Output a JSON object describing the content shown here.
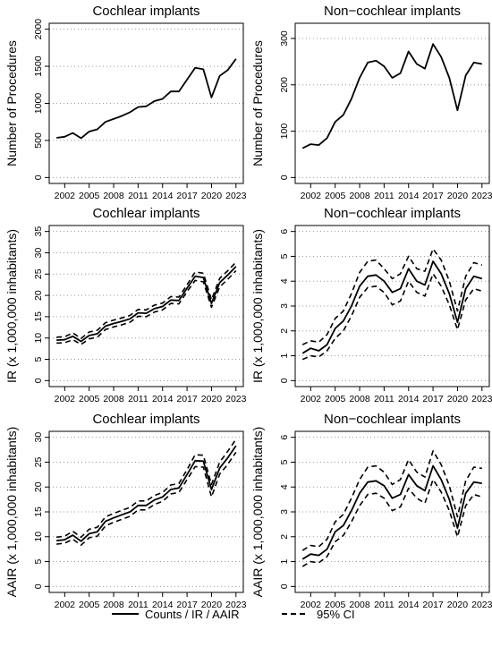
{
  "chart_data": [
    {
      "type": "line",
      "title": "Cochlear implants",
      "ylabel": "Number of Procedures",
      "x": [
        2001,
        2002,
        2003,
        2004,
        2005,
        2006,
        2007,
        2008,
        2009,
        2010,
        2011,
        2012,
        2013,
        2014,
        2015,
        2016,
        2017,
        2018,
        2019,
        2020,
        2021,
        2022,
        2023
      ],
      "ylim": [
        0,
        2000
      ],
      "yticks": [
        "0",
        "500",
        "1000",
        "1500",
        "2000"
      ],
      "ytick_values": [
        0,
        500,
        1000,
        1500,
        2000
      ],
      "grid": true,
      "series": [
        {
          "values": [
            535,
            550,
            600,
            530,
            620,
            650,
            750,
            790,
            830,
            880,
            950,
            960,
            1030,
            1060,
            1160,
            1160,
            1320,
            1480,
            1460,
            1080,
            1370,
            1450,
            1600
          ]
        }
      ]
    },
    {
      "type": "line",
      "title": "Non−cochlear implants",
      "ylabel": "Number of Procedures",
      "x": [
        2001,
        2002,
        2003,
        2004,
        2005,
        2006,
        2007,
        2008,
        2009,
        2010,
        2011,
        2012,
        2013,
        2014,
        2015,
        2016,
        2017,
        2018,
        2019,
        2020,
        2021,
        2022,
        2023
      ],
      "ylim": [
        0,
        320
      ],
      "yticks": [
        "0",
        "100",
        "200",
        "300"
      ],
      "ytick_values": [
        0,
        100,
        200,
        300
      ],
      "grid": true,
      "series": [
        {
          "values": [
            63,
            72,
            70,
            85,
            120,
            135,
            170,
            215,
            248,
            252,
            240,
            215,
            225,
            272,
            245,
            235,
            288,
            260,
            215,
            145,
            220,
            248,
            245
          ]
        }
      ]
    },
    {
      "type": "line",
      "title": "Cochlear implants",
      "ylabel": "IR (x 1,000,000 inhabitants)",
      "x": [
        2001,
        2002,
        2003,
        2004,
        2005,
        2006,
        2007,
        2008,
        2009,
        2010,
        2011,
        2012,
        2013,
        2014,
        2015,
        2016,
        2017,
        2018,
        2019,
        2020,
        2021,
        2022,
        2023
      ],
      "ylim": [
        0,
        35
      ],
      "yticks": [
        "0",
        "5",
        "10",
        "15",
        "20",
        "25",
        "30",
        "35"
      ],
      "ytick_values": [
        0,
        5,
        10,
        15,
        20,
        25,
        30,
        35
      ],
      "grid": true,
      "series": [
        {
          "values": [
            9.5,
            9.6,
            10.4,
            9.2,
            10.6,
            11.0,
            12.8,
            13.4,
            13.9,
            14.5,
            15.9,
            15.8,
            16.9,
            17.4,
            18.9,
            18.8,
            21.7,
            24.5,
            24.2,
            18.1,
            23.0,
            24.8,
            26.8
          ]
        },
        {
          "values": [
            10.2,
            10.3,
            11.2,
            9.9,
            11.4,
            11.8,
            13.6,
            14.2,
            14.7,
            15.3,
            16.7,
            16.6,
            17.7,
            18.2,
            19.7,
            19.6,
            22.5,
            25.5,
            25.2,
            19.0,
            24.0,
            25.8,
            27.8
          ]
        },
        {
          "values": [
            8.8,
            8.9,
            9.6,
            8.5,
            9.8,
            10.2,
            12.0,
            12.6,
            13.1,
            13.7,
            15.1,
            15.0,
            16.1,
            16.6,
            18.1,
            18.0,
            20.9,
            23.5,
            23.2,
            17.2,
            22.0,
            23.8,
            25.8
          ]
        }
      ]
    },
    {
      "type": "line",
      "title": "Non−cochlear implants",
      "ylabel": "IR (x 1,000,000 inhabitants)",
      "x": [
        2001,
        2002,
        2003,
        2004,
        2005,
        2006,
        2007,
        2008,
        2009,
        2010,
        2011,
        2012,
        2013,
        2014,
        2015,
        2016,
        2017,
        2018,
        2019,
        2020,
        2021,
        2022,
        2023
      ],
      "ylim": [
        0,
        6
      ],
      "yticks": [
        "0",
        "1",
        "2",
        "3",
        "4",
        "5",
        "6"
      ],
      "ytick_values": [
        0,
        1,
        2,
        3,
        4,
        5,
        6
      ],
      "grid": true,
      "series": [
        {
          "values": [
            1.1,
            1.3,
            1.2,
            1.45,
            2.1,
            2.4,
            3.0,
            3.8,
            4.2,
            4.25,
            4.0,
            3.55,
            3.7,
            4.5,
            4.0,
            3.85,
            4.8,
            4.3,
            3.5,
            2.35,
            3.7,
            4.2,
            4.1
          ]
        },
        {
          "values": [
            1.45,
            1.6,
            1.55,
            1.85,
            2.5,
            2.8,
            3.5,
            4.35,
            4.8,
            4.85,
            4.5,
            4.1,
            4.3,
            5.0,
            4.5,
            4.4,
            5.3,
            4.85,
            4.0,
            2.8,
            4.2,
            4.75,
            4.65
          ]
        },
        {
          "values": [
            0.85,
            1.0,
            0.95,
            1.2,
            1.7,
            2.0,
            2.6,
            3.35,
            3.75,
            3.8,
            3.55,
            3.05,
            3.2,
            4.0,
            3.55,
            3.4,
            4.3,
            3.8,
            3.05,
            2.05,
            3.25,
            3.7,
            3.6
          ]
        }
      ]
    },
    {
      "type": "line",
      "title": "Cochlear implants",
      "ylabel": "AAIR (x 1,000,000 inhabitants)",
      "x": [
        2001,
        2002,
        2003,
        2004,
        2005,
        2006,
        2007,
        2008,
        2009,
        2010,
        2011,
        2012,
        2013,
        2014,
        2015,
        2016,
        2017,
        2018,
        2019,
        2020,
        2021,
        2022,
        2023
      ],
      "ylim": [
        0,
        30
      ],
      "yticks": [
        "0",
        "5",
        "10",
        "15",
        "20",
        "25",
        "30"
      ],
      "ytick_values": [
        0,
        5,
        10,
        15,
        20,
        25,
        30
      ],
      "grid": true,
      "series": [
        {
          "values": [
            9.2,
            9.4,
            10.3,
            9.1,
            10.6,
            11.0,
            13.1,
            13.8,
            14.4,
            15.0,
            16.3,
            16.3,
            17.4,
            18.0,
            19.5,
            19.8,
            22.5,
            25.3,
            25.2,
            19.5,
            23.8,
            25.9,
            28.3
          ]
        },
        {
          "values": [
            9.9,
            10.1,
            11.1,
            9.9,
            11.5,
            11.9,
            14.0,
            14.7,
            15.3,
            15.9,
            17.2,
            17.2,
            18.3,
            18.9,
            20.4,
            20.7,
            23.5,
            26.5,
            26.4,
            20.5,
            25.0,
            27.2,
            29.6
          ]
        },
        {
          "values": [
            8.5,
            8.7,
            9.5,
            8.3,
            9.8,
            10.1,
            12.2,
            12.9,
            13.5,
            14.1,
            15.4,
            15.4,
            16.5,
            17.1,
            18.6,
            18.9,
            21.5,
            24.1,
            24.0,
            18.0,
            22.6,
            24.6,
            27.0
          ]
        }
      ]
    },
    {
      "type": "line",
      "title": "Non−cochlear implants",
      "ylabel": "AAIR (x 1,000,000 inhabitants)",
      "x": [
        2001,
        2002,
        2003,
        2004,
        2005,
        2006,
        2007,
        2008,
        2009,
        2010,
        2011,
        2012,
        2013,
        2014,
        2015,
        2016,
        2017,
        2018,
        2019,
        2020,
        2021,
        2022,
        2023
      ],
      "ylim": [
        0,
        6
      ],
      "yticks": [
        "0",
        "1",
        "2",
        "3",
        "4",
        "5",
        "6"
      ],
      "ytick_values": [
        0,
        1,
        2,
        3,
        4,
        5,
        6
      ],
      "grid": true,
      "series": [
        {
          "values": [
            1.1,
            1.3,
            1.25,
            1.5,
            2.2,
            2.45,
            3.05,
            3.75,
            4.2,
            4.25,
            4.05,
            3.55,
            3.7,
            4.5,
            4.05,
            3.85,
            4.85,
            4.3,
            3.5,
            2.35,
            3.75,
            4.2,
            4.15
          ]
        },
        {
          "values": [
            1.45,
            1.65,
            1.6,
            1.9,
            2.6,
            2.9,
            3.55,
            4.3,
            4.8,
            4.85,
            4.6,
            4.1,
            4.3,
            5.1,
            4.6,
            4.4,
            5.45,
            4.9,
            4.05,
            2.8,
            4.25,
            4.8,
            4.75
          ]
        },
        {
          "values": [
            0.8,
            1.0,
            0.95,
            1.2,
            1.8,
            2.05,
            2.6,
            3.25,
            3.7,
            3.75,
            3.55,
            3.05,
            3.2,
            3.95,
            3.55,
            3.35,
            4.3,
            3.8,
            3.05,
            2.0,
            3.25,
            3.7,
            3.6
          ]
        }
      ]
    }
  ],
  "xticks": [
    "2002",
    "2005",
    "2008",
    "2011",
    "2014",
    "2017",
    "2020",
    "2023"
  ],
  "xtick_values": [
    2002,
    2005,
    2008,
    2011,
    2014,
    2017,
    2020,
    2023
  ],
  "legend": {
    "placement": "bottom",
    "solid_label": "Counts / IR / AAIR",
    "dashed_label": "95% CI"
  }
}
